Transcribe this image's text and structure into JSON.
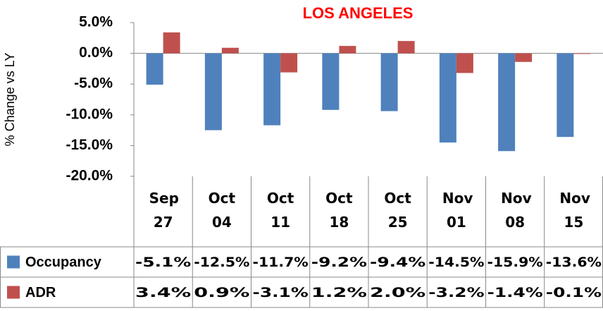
{
  "chart_data": {
    "type": "bar",
    "title": "LOS ANGELES",
    "y_label": "% Change vs LY",
    "categories": [
      "Sep 27",
      "Oct 04",
      "Oct 11",
      "Oct 18",
      "Oct 25",
      "Nov 01",
      "Nov 08",
      "Nov 15"
    ],
    "series": [
      {
        "name": "Occupancy",
        "color": "#4f81bd",
        "values": [
          -5.1,
          -12.5,
          -11.7,
          -9.2,
          -9.4,
          -14.5,
          -15.9,
          -13.6
        ],
        "value_labels": [
          "-5.1%",
          "-12.5%",
          "-11.7%",
          "-9.2%",
          "-9.4%",
          "-14.5%",
          "-15.9%",
          "-13.6%"
        ]
      },
      {
        "name": "ADR",
        "color": "#c0504d",
        "values": [
          3.4,
          0.9,
          -3.1,
          1.2,
          2.0,
          -3.2,
          -1.4,
          -0.1
        ],
        "value_labels": [
          "3.4%",
          "0.9%",
          "-3.1%",
          "1.2%",
          "2.0%",
          "-3.2%",
          "-1.4%",
          "-0.1%"
        ]
      }
    ],
    "ylim": [
      -20,
      5
    ],
    "yticks": [
      {
        "value": -20,
        "label": "-20.0%"
      },
      {
        "value": -15,
        "label": "-15.0%"
      },
      {
        "value": -10,
        "label": "-10.0%"
      },
      {
        "value": -5,
        "label": "-5.0%"
      },
      {
        "value": 0,
        "label": "0.0%"
      },
      {
        "value": 5,
        "label": "5.0%"
      }
    ]
  }
}
